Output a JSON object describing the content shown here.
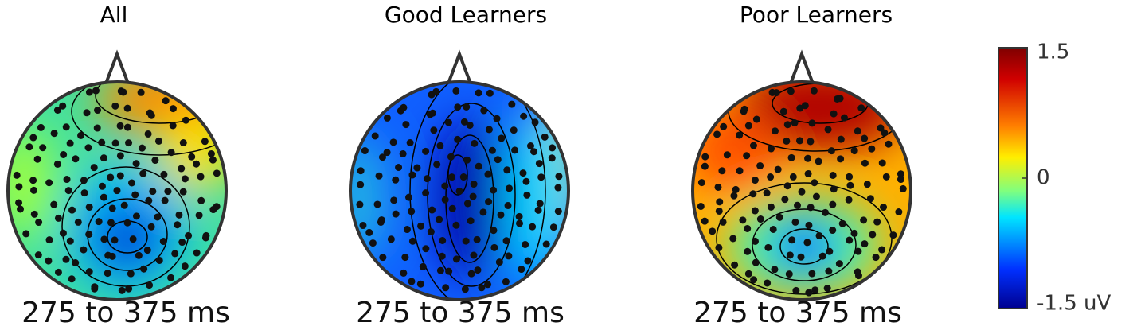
{
  "panels": [
    {
      "title": "All",
      "subtitle": "275 to 375 ms"
    },
    {
      "title": "Good Learners",
      "subtitle": "275 to 375 ms"
    },
    {
      "title": "Poor Learners",
      "subtitle": "275 to 375 ms"
    }
  ],
  "colorbar": {
    "lim": [
      -1.5,
      1.5
    ],
    "ticks": [
      1.5,
      0,
      {
        "value": -1.5,
        "label": "-1.5 uV"
      }
    ]
  }
}
